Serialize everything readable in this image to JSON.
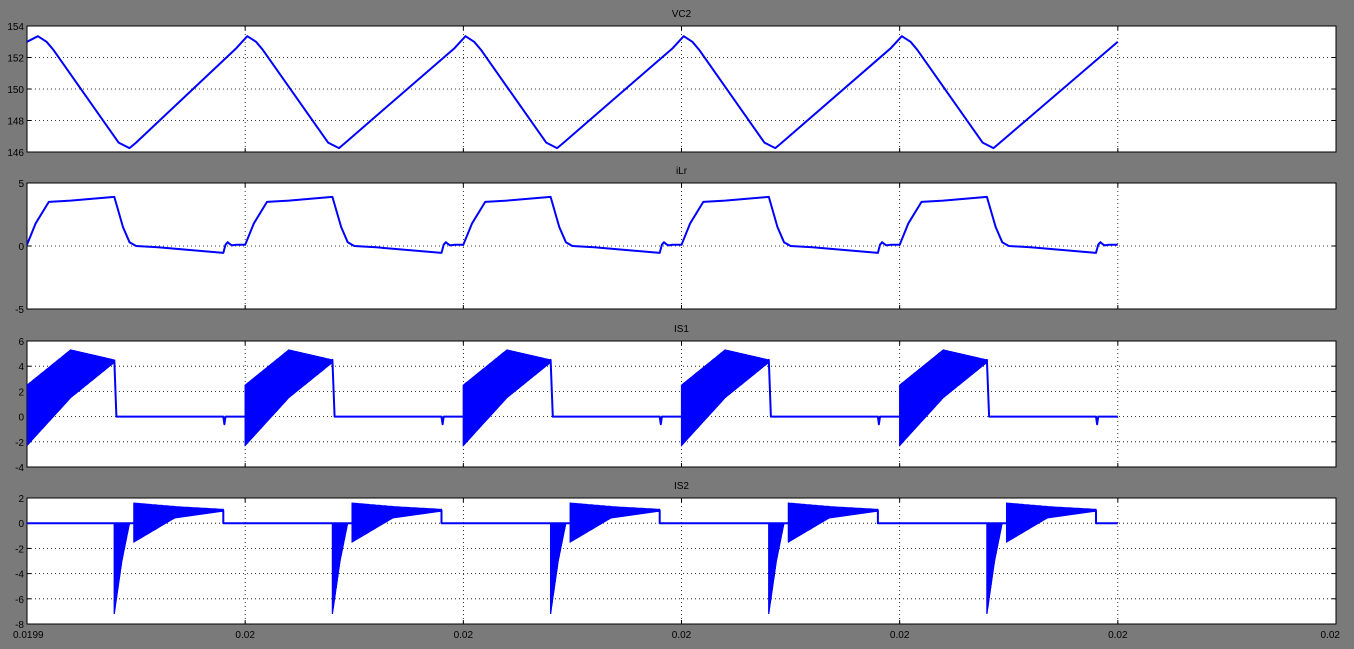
{
  "chart_data": [
    {
      "type": "line",
      "title": "VC2",
      "ylim": [
        146,
        154
      ],
      "yticks": [
        "146",
        "148",
        "150",
        "152",
        "154"
      ],
      "xlim": [
        0,
        6
      ],
      "grid": true,
      "color": "#0000ff",
      "series": [
        {
          "x": [
            0,
            0.05,
            0.09,
            0.12,
            0.42,
            0.47,
            0.5,
            0.96,
            1.01,
            1.05,
            1.08,
            1.38,
            1.43,
            1.46,
            1.96,
            2.01,
            2.05,
            2.08,
            2.38,
            2.43,
            2.46,
            2.96,
            3.01,
            3.05,
            3.08,
            3.38,
            3.43,
            3.46,
            3.96,
            4.01,
            4.05,
            4.08,
            4.38,
            4.43,
            4.46,
            5.0
          ],
          "y": [
            153.0,
            153.35,
            153.0,
            152.5,
            146.6,
            146.25,
            146.6,
            152.6,
            153.35,
            153.0,
            152.5,
            146.6,
            146.25,
            146.6,
            152.6,
            153.35,
            153.0,
            152.5,
            146.6,
            146.25,
            146.6,
            152.6,
            153.35,
            153.0,
            152.5,
            146.6,
            146.25,
            146.6,
            152.6,
            153.35,
            153.0,
            152.5,
            146.6,
            146.25,
            146.6,
            153.0
          ]
        }
      ]
    },
    {
      "type": "line",
      "title": "iLr",
      "ylim": [
        -5,
        5
      ],
      "yticks": [
        "-5",
        "0",
        "5"
      ],
      "xlim": [
        0,
        6
      ],
      "grid": true,
      "color": "#0000ff",
      "series": [
        {
          "x": [
            0,
            0.04,
            0.1,
            0.2,
            0.4,
            0.44,
            0.47,
            0.5,
            0.6,
            0.9,
            0.91,
            0.92,
            0.93,
            0.94,
            0.96,
            1.0,
            1.04,
            1.1,
            1.2,
            1.4,
            1.44,
            1.47,
            1.5,
            1.6,
            1.9,
            1.91,
            1.92,
            1.93,
            1.94,
            1.96,
            2.0,
            2.04,
            2.1,
            2.2,
            2.4,
            2.44,
            2.47,
            2.5,
            2.6,
            2.9,
            2.91,
            2.92,
            2.93,
            2.94,
            2.96,
            3.0,
            3.04,
            3.1,
            3.2,
            3.4,
            3.44,
            3.47,
            3.5,
            3.6,
            3.9,
            3.91,
            3.92,
            3.93,
            3.94,
            3.96,
            4.0,
            4.04,
            4.1,
            4.2,
            4.4,
            4.44,
            4.47,
            4.5,
            4.6,
            4.9,
            4.91,
            4.92,
            4.93,
            4.94,
            4.96,
            5.0
          ],
          "y": [
            0.1,
            1.8,
            3.5,
            3.6,
            3.9,
            1.5,
            0.3,
            0.0,
            -0.1,
            -0.55,
            0.1,
            0.3,
            0.15,
            0.05,
            0.1,
            0.1,
            1.8,
            3.5,
            3.6,
            3.9,
            1.5,
            0.3,
            0.0,
            -0.1,
            -0.55,
            0.1,
            0.3,
            0.15,
            0.05,
            0.1,
            0.1,
            1.8,
            3.5,
            3.6,
            3.9,
            1.5,
            0.3,
            0.0,
            -0.1,
            -0.55,
            0.1,
            0.3,
            0.15,
            0.05,
            0.1,
            0.1,
            1.8,
            3.5,
            3.6,
            3.9,
            1.5,
            0.3,
            0.0,
            -0.1,
            -0.55,
            0.1,
            0.3,
            0.15,
            0.05,
            0.1,
            0.1,
            1.8,
            3.5,
            3.6,
            3.9,
            1.5,
            0.3,
            0.0,
            -0.1,
            -0.55,
            0.1,
            0.3,
            0.15,
            0.05,
            0.1,
            0.1
          ]
        }
      ]
    },
    {
      "type": "line",
      "title": "IS1",
      "ylim": [
        -4,
        6
      ],
      "yticks": [
        "-4",
        "-2",
        "0",
        "2",
        "4",
        "6"
      ],
      "xlim": [
        0,
        6
      ],
      "grid": true,
      "color": "#0000ff",
      "oscillation_bursts": [
        {
          "x0": 0.0,
          "x1": 0.4,
          "upper": [
            2.5,
            5.3,
            4.5
          ],
          "lower": [
            -2.3,
            1.5,
            4.3
          ]
        },
        {
          "x0": 1.0,
          "x1": 1.4,
          "upper": [
            2.5,
            5.3,
            4.5
          ],
          "lower": [
            -2.3,
            1.5,
            4.3
          ]
        },
        {
          "x0": 2.0,
          "x1": 2.4,
          "upper": [
            2.5,
            5.3,
            4.5
          ],
          "lower": [
            -2.3,
            1.5,
            4.3
          ]
        },
        {
          "x0": 3.0,
          "x1": 3.4,
          "upper": [
            2.5,
            5.3,
            4.5
          ],
          "lower": [
            -2.3,
            1.5,
            4.3
          ]
        },
        {
          "x0": 4.0,
          "x1": 4.4,
          "upper": [
            2.5,
            5.3,
            4.5
          ],
          "lower": [
            -2.3,
            1.5,
            4.3
          ]
        }
      ],
      "series": [
        {
          "x": [
            0.4,
            0.41,
            0.9,
            0.905,
            0.91,
            1.0,
            1.4,
            1.41,
            1.9,
            1.905,
            1.91,
            2.0,
            2.4,
            2.41,
            2.9,
            2.905,
            2.91,
            3.0,
            3.4,
            3.41,
            3.9,
            3.905,
            3.91,
            4.0,
            4.4,
            4.41,
            4.9,
            4.905,
            4.91,
            5.0
          ],
          "y": [
            4.5,
            0,
            0,
            -0.6,
            0,
            0,
            4.5,
            0,
            0,
            -0.6,
            0,
            0,
            4.5,
            0,
            0,
            -0.6,
            0,
            0,
            4.5,
            0,
            0,
            -0.6,
            0,
            0,
            4.5,
            0,
            0,
            -0.6,
            0,
            0
          ]
        }
      ]
    },
    {
      "type": "line",
      "title": "IS2",
      "ylim": [
        -8,
        2
      ],
      "yticks": [
        "-8",
        "-6",
        "-4",
        "-2",
        "0",
        "2"
      ],
      "xlim": [
        0,
        6
      ],
      "xticks": [
        "0.0199",
        "0.02",
        "0.02",
        "0.02",
        "0.02",
        "0.02",
        "0.02"
      ],
      "grid": true,
      "color": "#0000ff",
      "oscillation_bursts": [
        {
          "x0": 0.4,
          "x1": 0.47,
          "upper": [
            0.0,
            0.0,
            0.0
          ],
          "lower": [
            -7.2,
            -3.0,
            0.0
          ]
        },
        {
          "x0": 0.49,
          "x1": 0.9,
          "upper": [
            1.6,
            1.3,
            1.1
          ],
          "lower": [
            -1.5,
            0.6,
            1.0
          ]
        },
        {
          "x0": 1.4,
          "x1": 1.47,
          "upper": [
            0.0,
            0.0,
            0.0
          ],
          "lower": [
            -7.2,
            -3.0,
            0.0
          ]
        },
        {
          "x0": 1.49,
          "x1": 1.9,
          "upper": [
            1.6,
            1.3,
            1.1
          ],
          "lower": [
            -1.5,
            0.6,
            1.0
          ]
        },
        {
          "x0": 2.4,
          "x1": 2.47,
          "upper": [
            0.0,
            0.0,
            0.0
          ],
          "lower": [
            -7.2,
            -3.0,
            0.0
          ]
        },
        {
          "x0": 2.49,
          "x1": 2.9,
          "upper": [
            1.6,
            1.3,
            1.1
          ],
          "lower": [
            -1.5,
            0.6,
            1.0
          ]
        },
        {
          "x0": 3.4,
          "x1": 3.47,
          "upper": [
            0.0,
            0.0,
            0.0
          ],
          "lower": [
            -7.2,
            -3.0,
            0.0
          ]
        },
        {
          "x0": 3.49,
          "x1": 3.9,
          "upper": [
            1.6,
            1.3,
            1.1
          ],
          "lower": [
            -1.5,
            0.6,
            1.0
          ]
        },
        {
          "x0": 4.4,
          "x1": 4.47,
          "upper": [
            0.0,
            0.0,
            0.0
          ],
          "lower": [
            -7.2,
            -3.0,
            0.0
          ]
        },
        {
          "x0": 4.49,
          "x1": 4.9,
          "upper": [
            1.6,
            1.3,
            1.1
          ],
          "lower": [
            -1.5,
            0.6,
            1.0
          ]
        }
      ],
      "series": [
        {
          "x": [
            0,
            0.4,
            0.47,
            0.49,
            0.9,
            0.9,
            1.0,
            1.4,
            1.47,
            1.49,
            1.9,
            1.9,
            2.0,
            2.4,
            2.47,
            2.49,
            2.9,
            2.9,
            3.0,
            3.4,
            3.47,
            3.49,
            3.9,
            3.9,
            4.0,
            4.4,
            4.47,
            4.49,
            4.9,
            4.9,
            5.0
          ],
          "y": [
            0,
            0,
            0,
            0,
            1.0,
            0,
            0,
            0,
            0,
            0,
            1.0,
            0,
            0,
            0,
            0,
            0,
            1.0,
            0,
            0,
            0,
            0,
            0,
            1.0,
            0,
            0,
            0,
            0,
            0,
            1.0,
            0,
            0
          ]
        }
      ]
    }
  ]
}
